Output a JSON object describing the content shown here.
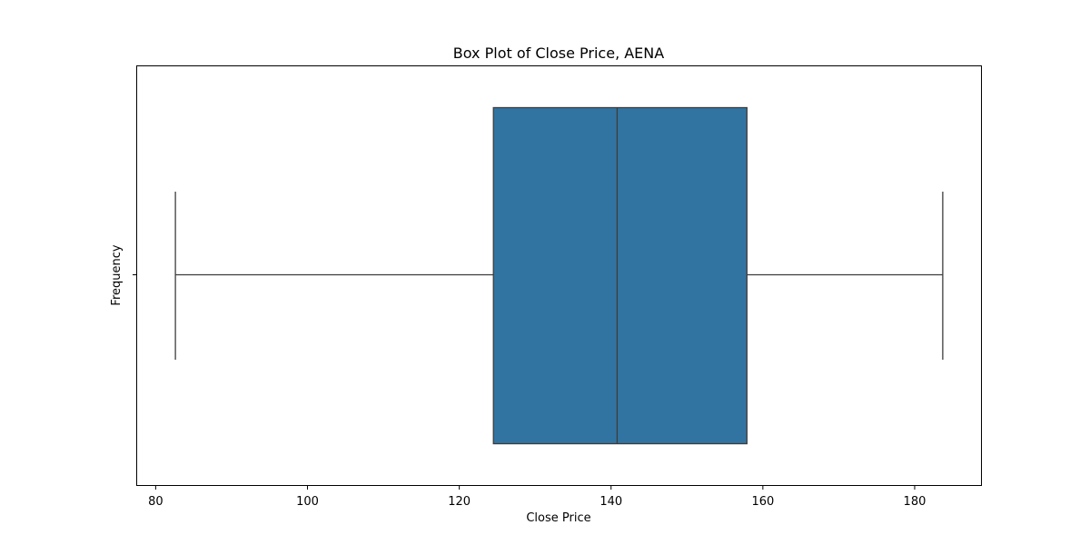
{
  "chart_data": {
    "type": "box",
    "title": "Box Plot of Close Price, AENA",
    "xlabel": "Close Price",
    "ylabel": "Frequency",
    "xlim": [
      77.5,
      188.8
    ],
    "xticks": [
      80,
      100,
      120,
      140,
      160,
      180
    ],
    "grid": false,
    "box": {
      "whisker_low": 82.6,
      "q1": 124.5,
      "median": 140.8,
      "q3": 157.9,
      "whisker_high": 183.7
    },
    "colors": {
      "box_fill": "#3274a1",
      "lines": "#3d3d3d"
    }
  }
}
